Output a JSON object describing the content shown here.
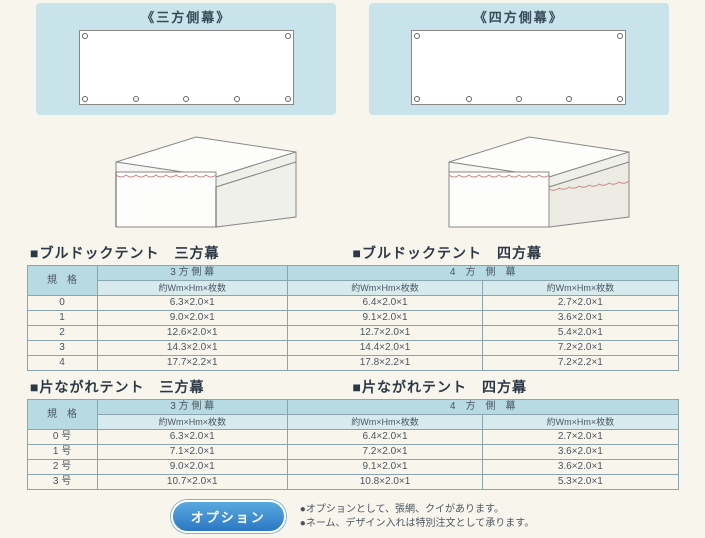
{
  "panels": {
    "left_title": "《三方側幕》",
    "right_title": "《四方側幕》"
  },
  "sections": {
    "bulldog3": "■ブルドックテント　三方幕",
    "bulldog4": "■ブルドックテント　四方幕",
    "kata3": "■片ながれテント　三方幕",
    "kata4": "■片ながれテント　四方幕"
  },
  "table1": {
    "h_spec": "規　格",
    "h_3side": "3 方 側 幕",
    "h_4side": "4　方　側　幕",
    "sub_whm": "約Wm×Hm×枚数",
    "rows": [
      {
        "spec": "0",
        "c3": "6.3×2.0×1",
        "c4a": "6.4×2.0×1",
        "c4b": "2.7×2.0×1"
      },
      {
        "spec": "1",
        "c3": "9.0×2.0×1",
        "c4a": "9.1×2.0×1",
        "c4b": "3.6×2.0×1"
      },
      {
        "spec": "2",
        "c3": "12.6×2.0×1",
        "c4a": "12.7×2.0×1",
        "c4b": "5.4×2.0×1"
      },
      {
        "spec": "3",
        "c3": "14.3×2.0×1",
        "c4a": "14.4×2.0×1",
        "c4b": "7.2×2.0×1"
      },
      {
        "spec": "4",
        "c3": "17.7×2.2×1",
        "c4a": "17.8×2.2×1",
        "c4b": "7.2×2.2×1"
      }
    ]
  },
  "table2": {
    "h_spec": "規　格",
    "h_3side": "3 方 側 幕",
    "h_4side": "4　方　側　幕",
    "sub_whm": "約Wm×Hm×枚数",
    "rows": [
      {
        "spec": "0 号",
        "c3": "6.3×2.0×1",
        "c4a": "6.4×2.0×1",
        "c4b": "2.7×2.0×1"
      },
      {
        "spec": "1 号",
        "c3": "7.1×2.0×1",
        "c4a": "7.2×2.0×1",
        "c4b": "3.6×2.0×1"
      },
      {
        "spec": "2 号",
        "c3": "9.0×2.0×1",
        "c4a": "9.1×2.0×1",
        "c4b": "3.6×2.0×1"
      },
      {
        "spec": "3 号",
        "c3": "10.7×2.0×1",
        "c4a": "10.8×2.0×1",
        "c4b": "5.3×2.0×1"
      }
    ]
  },
  "footer": {
    "option_label": "オプション",
    "note1": "●オプションとして、張網、クイがあります。",
    "note2": "●ネーム、デザイン入れは特別注文として承ります。"
  },
  "colors": {
    "panel_bg": "#c8e4ea",
    "table_head": "#b8dbe3",
    "table_subhead": "#d7ebef",
    "border": "#8aa5ad",
    "pill_top": "#5aa9e0",
    "pill_bottom": "#2b78c2"
  }
}
